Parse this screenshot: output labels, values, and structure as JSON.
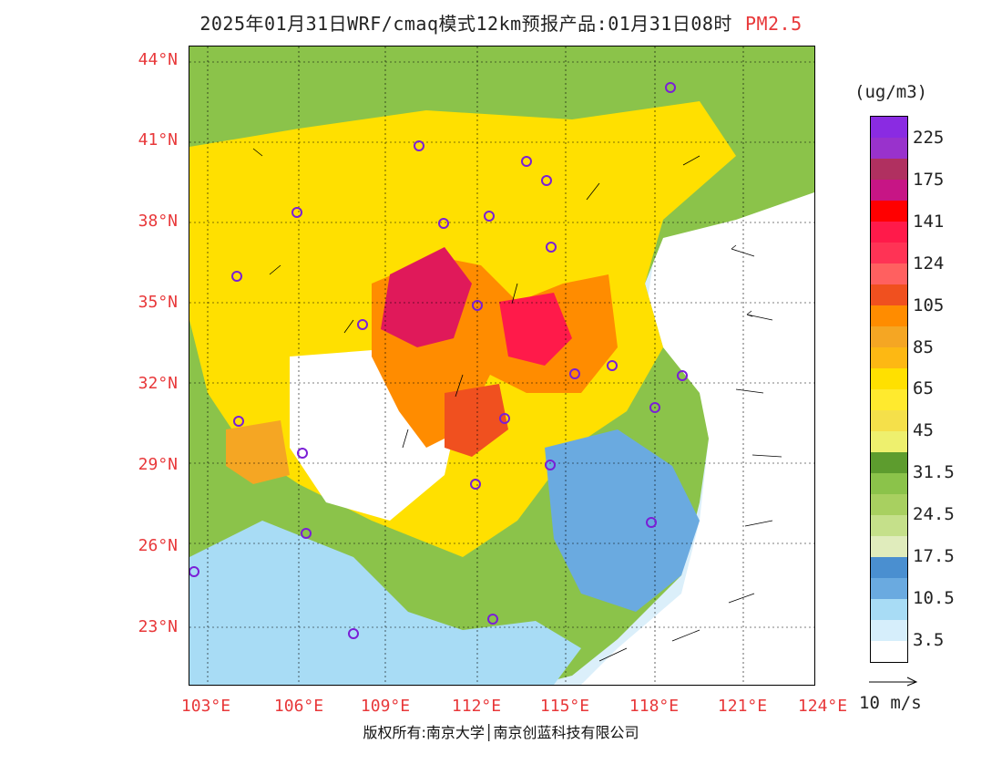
{
  "header": {
    "title": "2025年01月31日WRF/cmaq模式12km预报产品:01月31日08时",
    "parameter": "PM2.5"
  },
  "axes": {
    "lat_labels": [
      "44°N",
      "41°N",
      "38°N",
      "35°N",
      "32°N",
      "29°N",
      "26°N",
      "23°N"
    ],
    "lon_labels": [
      "103°E",
      "106°E",
      "109°E",
      "112°E",
      "115°E",
      "118°E",
      "121°E",
      "124°E"
    ]
  },
  "legend": {
    "unit": "(ug/m3)",
    "colors": [
      "#8a2be2",
      "#9932cc",
      "#b03060",
      "#c71585",
      "#ff0000",
      "#ff1a4a",
      "#ff3355",
      "#ff6060",
      "#f0501f",
      "#ff8c00",
      "#f5a623",
      "#fdb813",
      "#ffe000",
      "#ffea2e",
      "#f5e04a",
      "#eef06e",
      "#5d9c2e",
      "#8bc34a",
      "#a8d060",
      "#c5e08a",
      "#e0ecbc",
      "#4a8fd0",
      "#6aaae0",
      "#a8dcf5",
      "#d6eefb",
      "#ffffff"
    ],
    "labels": [
      "225",
      "175",
      "141",
      "124",
      "105",
      "85",
      "65",
      "45",
      "31.5",
      "24.5",
      "17.5",
      "10.5",
      "3.5"
    ]
  },
  "wind_reference": {
    "label": "10 m/s"
  },
  "footer": {
    "copyright": "版权所有:南京大学│南京创蓝科技有限公司"
  }
}
